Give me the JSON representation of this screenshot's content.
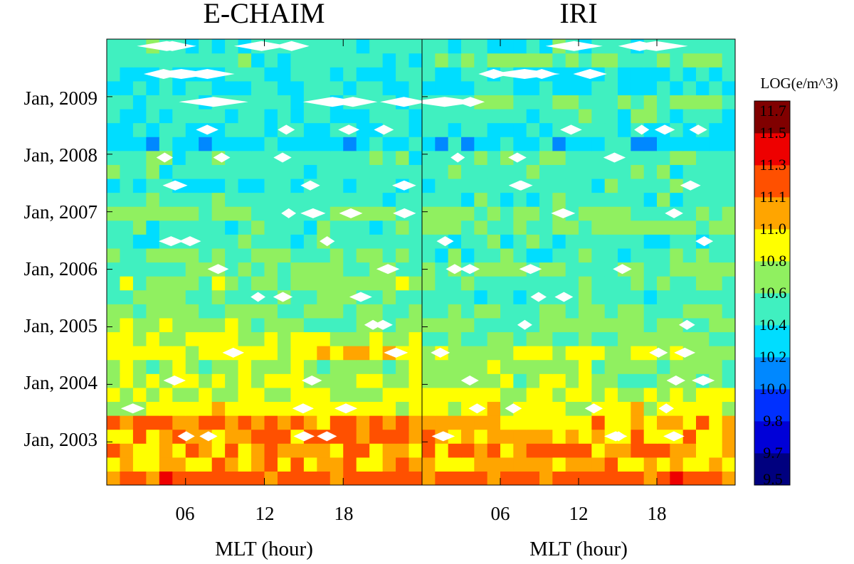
{
  "chart_data": {
    "type": "heatmap",
    "colorbar": {
      "title": "LOG(e/m^3)",
      "levels": [
        "9.5",
        "9.7",
        "9.8",
        "10.0",
        "10.2",
        "10.4",
        "10.6",
        "10.8",
        "11.0",
        "11.1",
        "11.3",
        "11.5",
        "11.7"
      ],
      "colors": [
        "#00007f",
        "#0000d8",
        "#0030ff",
        "#0088ff",
        "#00ddff",
        "#40f0c0",
        "#90f060",
        "#ffff00",
        "#ffa500",
        "#ff5000",
        "#ee0000",
        "#800000"
      ]
    },
    "y_axis": {
      "tick_labels": [
        "Jan, 2003",
        "Jan, 2004",
        "Jan, 2005",
        "Jan, 2006",
        "Jan, 2007",
        "Jan, 2008",
        "Jan, 2009"
      ],
      "tick_values": [
        2003,
        2004,
        2005,
        2006,
        2007,
        2008,
        2009
      ],
      "range": [
        2002.25,
        2010.0
      ]
    },
    "panels": [
      {
        "title": "E-CHAIM",
        "xlabel": "MLT (hour)",
        "x_tick_labels": [
          "06",
          "12",
          "18"
        ],
        "x_tick_values": [
          6,
          12,
          18
        ],
        "xlim": [
          0,
          24
        ],
        "row_values": [
          11.2,
          11.0,
          11.0,
          11.1,
          11.1,
          10.9,
          10.8,
          10.8,
          10.7,
          10.9,
          10.8,
          10.7,
          10.6,
          10.6,
          10.7,
          10.6,
          10.6,
          10.5,
          10.5,
          10.6,
          10.5,
          10.4,
          10.5,
          10.5,
          10.3,
          10.4,
          10.4,
          10.5,
          10.4,
          10.4,
          10.5,
          10.5
        ]
      },
      {
        "title": "IRI",
        "xlabel": "MLT (hour)",
        "x_tick_labels": [
          "06",
          "12",
          "18"
        ],
        "x_tick_values": [
          6,
          12,
          18
        ],
        "xlim": [
          0,
          24
        ],
        "row_values": [
          11.2,
          11.0,
          11.1,
          11.0,
          11.0,
          10.9,
          10.8,
          10.7,
          10.7,
          10.8,
          10.6,
          10.6,
          10.6,
          10.5,
          10.6,
          10.6,
          10.5,
          10.5,
          10.6,
          10.6,
          10.5,
          10.5,
          10.5,
          10.6,
          10.3,
          10.4,
          10.5,
          10.6,
          10.4,
          10.4,
          10.6,
          10.5
        ]
      }
    ]
  }
}
